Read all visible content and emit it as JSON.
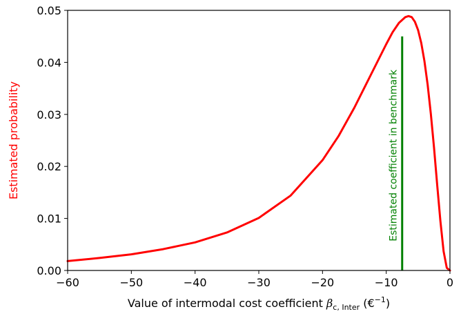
{
  "colors": {
    "curve": "#ff0000",
    "ylabel": "#ff0000",
    "marker": "#008000",
    "axes": "#000000"
  },
  "chart_data": {
    "type": "line",
    "title": "",
    "xlabel": {
      "prefix": "Value of intermodal cost coefficient ",
      "symbol": "β",
      "subscript": "c, Inter",
      "unit_prefix": " (€",
      "unit_superscript": "−1",
      "unit_suffix": ")"
    },
    "ylabel": "Estimated probability",
    "xlim": [
      -60,
      0
    ],
    "ylim": [
      0,
      0.05
    ],
    "xticks": [
      -60,
      -50,
      -40,
      -30,
      -20,
      -10,
      0
    ],
    "xtick_labels": [
      "−60",
      "−50",
      "−40",
      "−30",
      "−20",
      "−10",
      "0"
    ],
    "yticks": [
      0,
      0.01,
      0.02,
      0.03,
      0.04,
      0.05
    ],
    "ytick_labels": [
      "0.00",
      "0.01",
      "0.02",
      "0.03",
      "0.04",
      "0.05"
    ],
    "grid": false,
    "series": [
      {
        "x": [
          -60,
          -55,
          -50,
          -45,
          -40,
          -35,
          -30,
          -25,
          -20,
          -17.5,
          -15,
          -12.5,
          -10,
          -9,
          -8,
          -7,
          -6.5,
          -6,
          -5.5,
          -5,
          -4.5,
          -4,
          -3.5,
          -3,
          -2.5,
          -2,
          -1.5,
          -1,
          -0.5,
          0
        ],
        "y": [
          0.0018,
          0.0024,
          0.0031,
          0.0041,
          0.0054,
          0.0073,
          0.0101,
          0.0144,
          0.0212,
          0.0258,
          0.0313,
          0.0374,
          0.0435,
          0.0458,
          0.0476,
          0.0487,
          0.0489,
          0.0487,
          0.0478,
          0.0462,
          0.0437,
          0.0402,
          0.0357,
          0.0301,
          0.0236,
          0.0164,
          0.0095,
          0.0037,
          0.0005,
          0
        ]
      }
    ],
    "annotation": {
      "label": "Estimated coefficient in benchmark",
      "x": -7.5,
      "y_range": [
        0,
        0.045
      ]
    }
  }
}
